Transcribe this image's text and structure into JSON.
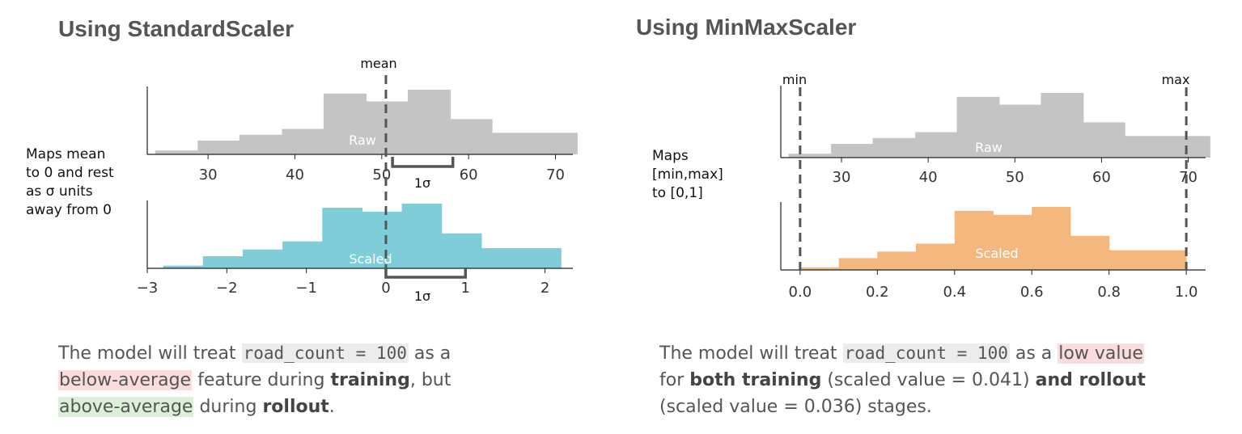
{
  "left": {
    "title": "Using StandardScaler",
    "side_note": [
      "Maps mean",
      "to 0 and rest",
      "as σ units",
      "away from 0"
    ],
    "mean_label": "mean",
    "sigma_label_top": "1σ",
    "sigma_label_bottom": "1σ",
    "caption": {
      "p1": "The model will treat ",
      "code": "road_count = 100",
      "p2": " as a ",
      "hl1": "below-average",
      "p3": " feature during ",
      "b1": "training",
      "p4": ", but ",
      "hl2": "above-average",
      "p5": " during ",
      "b2": "rollout",
      "p6": "."
    }
  },
  "right": {
    "title": "Using MinMaxScaler",
    "side_note": [
      "Maps",
      "[min,max]",
      "to [0,1]"
    ],
    "min_label": "min",
    "max_label": "max",
    "caption": {
      "p1": "The model will treat ",
      "code": "road_count = 100",
      "p2": " as a ",
      "hl1": "low value",
      "p3": "for ",
      "b1": "both training",
      "p4": " (scaled value = 0.041) ",
      "b2": "and rollout",
      "p5": "(scaled value = 0.036) stages."
    }
  },
  "colors": {
    "raw": "#c4c4c4",
    "scaled_standard": "#7ecdd9",
    "scaled_minmax": "#f4b77e",
    "axis": "#222222",
    "dashed": "#555555",
    "bracket": "#555555"
  },
  "chart_data": [
    {
      "type": "bar",
      "subtype": "histogram",
      "panel": "StandardScaler raw",
      "bin_edges": [
        23.9,
        28.8,
        33.6,
        38.5,
        43.3,
        48.2,
        53.0,
        57.9,
        62.7,
        67.6,
        72.5
      ],
      "values": [
        2,
        7,
        10,
        13,
        31,
        27,
        33,
        18,
        11,
        11
      ],
      "xlim": [
        23,
        72
      ],
      "ticks": [
        30,
        40,
        50,
        60,
        70
      ],
      "tick_labels": [
        "30",
        "40",
        "50",
        "60",
        "70"
      ],
      "label": "Raw",
      "annotations": {
        "mean": 49,
        "sigma_bracket": [
          49,
          58
        ]
      }
    },
    {
      "type": "bar",
      "subtype": "histogram",
      "panel": "StandardScaler scaled",
      "bin_edges": [
        -2.8,
        -2.3,
        -1.8,
        -1.3,
        -0.8,
        -0.3,
        0.2,
        0.7,
        1.2,
        1.7,
        2.2
      ],
      "values": [
        2,
        9,
        14,
        20,
        45,
        42,
        48,
        26,
        15,
        15
      ],
      "xlim": [
        -3,
        2.35
      ],
      "ticks": [
        -3,
        -2,
        -1,
        0,
        1,
        2
      ],
      "tick_labels": [
        "−3",
        "−2",
        "−1",
        "0",
        "1",
        "2"
      ],
      "label": "Scaled",
      "annotations": {
        "mean": 0,
        "sigma_bracket": [
          0,
          1
        ]
      }
    },
    {
      "type": "bar",
      "subtype": "histogram",
      "panel": "MinMaxScaler raw",
      "bin_edges": [
        23.9,
        28.8,
        33.6,
        38.5,
        43.3,
        48.2,
        53.0,
        57.9,
        62.7,
        67.6,
        72.5
      ],
      "values": [
        2,
        7,
        10,
        13,
        31,
        27,
        33,
        18,
        11,
        11
      ],
      "xlim": [
        23,
        72
      ],
      "ticks": [
        30,
        40,
        50,
        60,
        70
      ],
      "tick_labels": [
        "30",
        "40",
        "50",
        "60",
        "70"
      ],
      "label": "Raw",
      "annotations": {
        "min": 25.5,
        "max": 70.7
      }
    },
    {
      "type": "bar",
      "subtype": "histogram",
      "panel": "MinMaxScaler scaled",
      "bin_edges": [
        0.0,
        0.1,
        0.2,
        0.3,
        0.4,
        0.5,
        0.6,
        0.7,
        0.8,
        0.9,
        1.0
      ],
      "values": [
        2,
        9,
        14,
        20,
        45,
        42,
        48,
        26,
        15,
        15
      ],
      "xlim": [
        -0.05,
        1.05
      ],
      "ticks": [
        0.0,
        0.2,
        0.4,
        0.6,
        0.8,
        1.0
      ],
      "tick_labels": [
        "0.0",
        "0.2",
        "0.4",
        "0.6",
        "0.8",
        "1.0"
      ],
      "label": "Scaled",
      "annotations": {
        "min": 0,
        "max": 1
      }
    }
  ]
}
